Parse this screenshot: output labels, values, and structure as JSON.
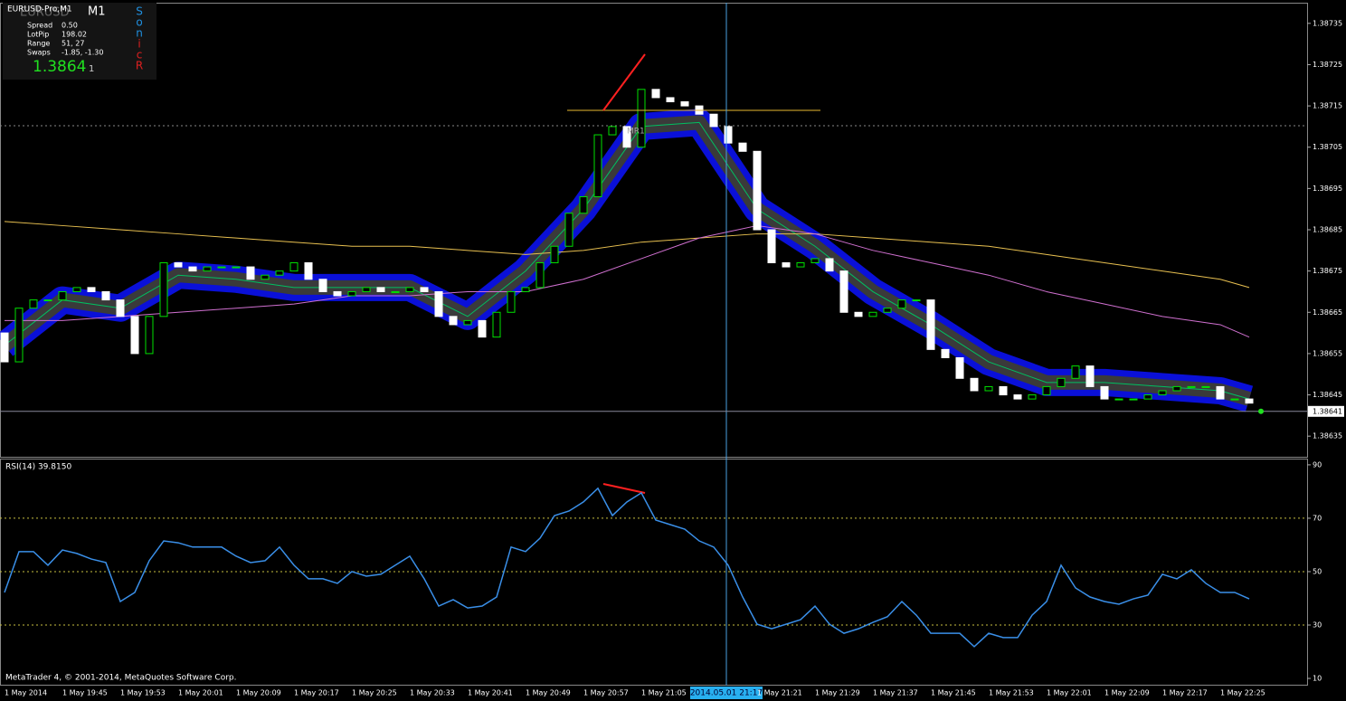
{
  "chart_data": {
    "type": "candlestick",
    "symbol_label": "EURUSD-Pro,M1",
    "timeframe": "M1",
    "info_panel": {
      "symbol_bg": "EURUSD",
      "rows": [
        [
          "Spread",
          "0.50"
        ],
        [
          "LotPip",
          "198.02"
        ],
        [
          "Range",
          "51, 27"
        ],
        [
          "Swaps",
          "-1.85, -1.30"
        ]
      ],
      "price": "1.3864",
      "price_tail": "1",
      "sonic": [
        "S",
        "o",
        "n",
        "i",
        "c",
        "R"
      ]
    },
    "annotation": "MR1",
    "ylim": [
      1.3863,
      1.3874
    ],
    "yticks": [
      1.38735,
      1.38725,
      1.38715,
      1.38705,
      1.38695,
      1.38685,
      1.38675,
      1.38665,
      1.38655,
      1.38645,
      1.38635
    ],
    "bid": 1.38641,
    "candles": [
      [
        1.3866,
        1.38653
      ],
      [
        1.38653,
        1.38666
      ],
      [
        1.38666,
        1.38668
      ],
      [
        1.38668,
        1.38668
      ],
      [
        1.38668,
        1.3867
      ],
      [
        1.3867,
        1.38671
      ],
      [
        1.38671,
        1.3867
      ],
      [
        1.3867,
        1.38668
      ],
      [
        1.38668,
        1.38664
      ],
      [
        1.38664,
        1.38655
      ],
      [
        1.38655,
        1.38664
      ],
      [
        1.38664,
        1.38677
      ],
      [
        1.38677,
        1.38676
      ],
      [
        1.38676,
        1.38675
      ],
      [
        1.38675,
        1.38676
      ],
      [
        1.38676,
        1.38676
      ],
      [
        1.38676,
        1.38676
      ],
      [
        1.38676,
        1.38673
      ],
      [
        1.38673,
        1.38674
      ],
      [
        1.38674,
        1.38675
      ],
      [
        1.38675,
        1.38677
      ],
      [
        1.38677,
        1.38673
      ],
      [
        1.38673,
        1.3867
      ],
      [
        1.3867,
        1.38669
      ],
      [
        1.38669,
        1.3867
      ],
      [
        1.3867,
        1.38671
      ],
      [
        1.38671,
        1.3867
      ],
      [
        1.3867,
        1.3867
      ],
      [
        1.3867,
        1.38671
      ],
      [
        1.38671,
        1.3867
      ],
      [
        1.3867,
        1.38664
      ],
      [
        1.38664,
        1.38662
      ],
      [
        1.38662,
        1.38663
      ],
      [
        1.38663,
        1.38659
      ],
      [
        1.38659,
        1.38665
      ],
      [
        1.38665,
        1.3867
      ],
      [
        1.3867,
        1.38671
      ],
      [
        1.38671,
        1.38677
      ],
      [
        1.38677,
        1.38681
      ],
      [
        1.38681,
        1.38689
      ],
      [
        1.38689,
        1.38693
      ],
      [
        1.38693,
        1.38708
      ],
      [
        1.38708,
        1.3871
      ],
      [
        1.3871,
        1.38705
      ],
      [
        1.38705,
        1.38719
      ],
      [
        1.38719,
        1.38717
      ],
      [
        1.38717,
        1.38716
      ],
      [
        1.38716,
        1.38715
      ],
      [
        1.38715,
        1.38713
      ],
      [
        1.38713,
        1.3871
      ],
      [
        1.3871,
        1.38706
      ],
      [
        1.38706,
        1.38704
      ],
      [
        1.38704,
        1.38685
      ],
      [
        1.38685,
        1.38677
      ],
      [
        1.38677,
        1.38676
      ],
      [
        1.38676,
        1.38677
      ],
      [
        1.38677,
        1.38678
      ],
      [
        1.38678,
        1.38675
      ],
      [
        1.38675,
        1.38665
      ],
      [
        1.38665,
        1.38664
      ],
      [
        1.38664,
        1.38665
      ],
      [
        1.38665,
        1.38666
      ],
      [
        1.38666,
        1.38668
      ],
      [
        1.38668,
        1.38668
      ],
      [
        1.38668,
        1.38656
      ],
      [
        1.38656,
        1.38654
      ],
      [
        1.38654,
        1.38649
      ],
      [
        1.38649,
        1.38646
      ],
      [
        1.38646,
        1.38647
      ],
      [
        1.38647,
        1.38645
      ],
      [
        1.38645,
        1.38644
      ],
      [
        1.38644,
        1.38645
      ],
      [
        1.38645,
        1.38647
      ],
      [
        1.38647,
        1.38649
      ],
      [
        1.38649,
        1.38652
      ],
      [
        1.38652,
        1.38647
      ],
      [
        1.38647,
        1.38644
      ],
      [
        1.38644,
        1.38644
      ],
      [
        1.38644,
        1.38644
      ],
      [
        1.38644,
        1.38645
      ],
      [
        1.38645,
        1.38646
      ],
      [
        1.38646,
        1.38647
      ],
      [
        1.38647,
        1.38647
      ],
      [
        1.38647,
        1.38647
      ],
      [
        1.38647,
        1.38644
      ],
      [
        1.38644,
        1.38644
      ],
      [
        1.38644,
        1.38643
      ]
    ],
    "indicators": [
      {
        "kind": "band",
        "color": "#0a10d8",
        "x": [
          0,
          4,
          8,
          12,
          16,
          20,
          24,
          28,
          32,
          36,
          40,
          44,
          48,
          52,
          56,
          60,
          64,
          68,
          72,
          76,
          80,
          84,
          86
        ],
        "values": [
          1.38657,
          1.38668,
          1.38666,
          1.38674,
          1.38673,
          1.38671,
          1.38671,
          1.38671,
          1.38664,
          1.38675,
          1.3869,
          1.3871,
          1.38711,
          1.3869,
          1.38681,
          1.3867,
          1.38662,
          1.38653,
          1.38648,
          1.38648,
          1.38647,
          1.38646,
          1.38644
        ]
      },
      {
        "kind": "line",
        "color": "#e8c050",
        "x": [
          0,
          4,
          8,
          12,
          16,
          20,
          24,
          28,
          32,
          36,
          40,
          44,
          48,
          52,
          56,
          60,
          64,
          68,
          72,
          76,
          80,
          84,
          86
        ],
        "values": [
          1.38687,
          1.38686,
          1.38685,
          1.38684,
          1.38683,
          1.38682,
          1.38681,
          1.38681,
          1.3868,
          1.38679,
          1.3868,
          1.38682,
          1.38683,
          1.38684,
          1.38684,
          1.38683,
          1.38682,
          1.38681,
          1.38679,
          1.38677,
          1.38675,
          1.38673,
          1.38671
        ]
      },
      {
        "kind": "line",
        "color": "#d070d0",
        "x": [
          0,
          4,
          8,
          12,
          16,
          20,
          24,
          28,
          32,
          36,
          40,
          44,
          48,
          52,
          56,
          60,
          64,
          68,
          72,
          76,
          80,
          84,
          86
        ],
        "values": [
          1.38663,
          1.38663,
          1.38664,
          1.38665,
          1.38666,
          1.38667,
          1.38669,
          1.38669,
          1.3867,
          1.3867,
          1.38673,
          1.38678,
          1.38683,
          1.38686,
          1.38684,
          1.3868,
          1.38677,
          1.38674,
          1.3867,
          1.38667,
          1.38664,
          1.38662,
          1.38659
        ]
      }
    ],
    "time_labels": [
      "1 May 2014",
      "1 May 19:45",
      "1 May 19:53",
      "1 May 20:01",
      "1 May 20:09",
      "1 May 20:17",
      "1 May 20:25",
      "1 May 20:33",
      "1 May 20:41",
      "1 May 20:49",
      "1 May 20:57",
      "1 May 21:05",
      null,
      "1 May 21:21",
      "1 May 21:29",
      "1 May 21:37",
      "1 May 21:45",
      "1 May 21:53",
      "1 May 22:01",
      "1 May 22:09",
      "1 May 22:17",
      "1 May 22:25"
    ],
    "crosshair_label": "2014.05.01 21:17",
    "rsi": {
      "title": "RSI(14) 39.8150",
      "color": "#3a8fe8",
      "ylim": [
        7.3,
        92
      ],
      "yticks": [
        90,
        70,
        50,
        30,
        10
      ],
      "levels": [
        70,
        50,
        30
      ],
      "values": [
        42.2,
        57.5,
        57.5,
        52.4,
        58.1,
        56.8,
        54.7,
        53.4,
        38.8,
        42.2,
        54.1,
        61.5,
        60.8,
        59.2,
        59.2,
        59.2,
        55.8,
        53.4,
        54.1,
        59.2,
        52.4,
        47.3,
        47.3,
        45.6,
        50.0,
        48.3,
        49.0,
        52.4,
        55.8,
        47.3,
        37.1,
        39.5,
        36.4,
        37.1,
        40.5,
        59.2,
        57.5,
        62.5,
        71.0,
        72.7,
        76.1,
        81.2,
        71.0,
        76.1,
        79.5,
        69.3,
        67.6,
        65.9,
        61.5,
        59.2,
        52.4,
        40.5,
        30.3,
        28.6,
        30.3,
        32.0,
        37.1,
        30.3,
        26.9,
        28.6,
        31.0,
        33.1,
        38.8,
        33.7,
        26.9,
        26.9,
        26.9,
        21.9,
        26.9,
        25.3,
        25.3,
        33.7,
        38.8,
        52.4,
        43.9,
        40.5,
        38.8,
        37.8,
        39.8,
        41.2,
        49.0,
        47.3,
        50.7,
        45.6,
        42.2,
        42.2,
        39.8
      ]
    },
    "footer": "MetaTrader 4, © 2001-2014, MetaQuotes Software Corp."
  }
}
